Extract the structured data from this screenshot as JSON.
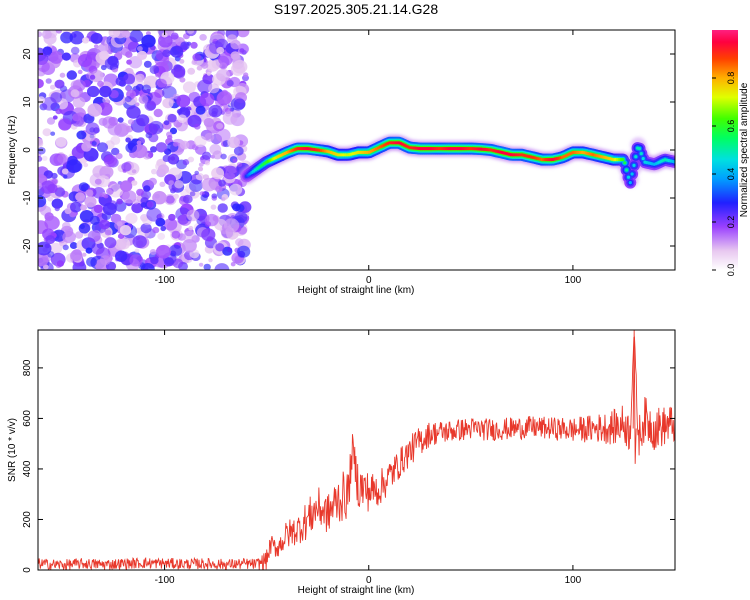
{
  "title": "S197.2025.305.21.14.G28",
  "chart_data": [
    {
      "type": "heatmap",
      "name": "spectrogram",
      "xlabel": "Height of straight line (km)",
      "ylabel": "Frequency (Hz)",
      "xlim": [
        -162,
        150
      ],
      "ylim": [
        -25,
        25
      ],
      "xticks": [
        -100,
        0,
        100
      ],
      "yticks": [
        -20,
        -10,
        0,
        10,
        20
      ],
      "noise_region_x": [
        -162,
        -60
      ],
      "signal_trace": {
        "x": [
          -60,
          -55,
          -50,
          -45,
          -40,
          -35,
          -30,
          -25,
          -20,
          -15,
          -10,
          -5,
          0,
          5,
          10,
          15,
          20,
          25,
          30,
          35,
          40,
          45,
          50,
          55,
          60,
          65,
          70,
          75,
          80,
          85,
          90,
          95,
          100,
          105,
          110,
          115,
          120,
          125,
          128,
          132,
          135,
          140,
          145,
          150
        ],
        "y": [
          -5.5,
          -4,
          -2.5,
          -1.5,
          -0.5,
          0.3,
          0.3,
          0,
          -0.3,
          -1,
          -1,
          -0.5,
          -0.5,
          0.5,
          1.5,
          1.5,
          0.5,
          0.3,
          0.3,
          0.3,
          0.3,
          0.3,
          0.3,
          0.2,
          0,
          -0.5,
          -1,
          -1,
          -1.5,
          -2,
          -2,
          -1.5,
          -0.5,
          -0.5,
          -1,
          -1.5,
          -2,
          -2,
          -7,
          1,
          -2.5,
          -3,
          -2,
          -2.5
        ],
        "amplitude": [
          0.3,
          0.5,
          0.6,
          0.75,
          0.8,
          0.9,
          0.95,
          0.9,
          0.8,
          0.75,
          0.7,
          0.75,
          0.8,
          0.85,
          0.9,
          0.95,
          0.9,
          0.95,
          0.95,
          0.9,
          0.95,
          0.95,
          0.9,
          0.95,
          0.9,
          0.95,
          0.95,
          0.9,
          0.9,
          0.85,
          0.95,
          0.85,
          0.85,
          0.8,
          0.85,
          0.8,
          0.75,
          0.6,
          0.4,
          0.5,
          0.45,
          0.4,
          0.5,
          0.4
        ]
      }
    },
    {
      "type": "colorbar",
      "label": "Normalized spectral amplitude",
      "range": [
        0,
        1
      ],
      "ticks": [
        "0.0",
        "0.2",
        "0.4",
        "0.6",
        "0.8"
      ]
    },
    {
      "type": "line",
      "name": "snr",
      "xlabel": "Height of straight line (km)",
      "ylabel": "SNR (10 * v/v)",
      "xlim": [
        -162,
        150
      ],
      "ylim": [
        0,
        950
      ],
      "xticks": [
        -100,
        0,
        100
      ],
      "yticks": [
        0,
        200,
        400,
        600,
        800
      ],
      "series": [
        {
          "name": "SNR",
          "color": "#e8382b",
          "x": [
            -162,
            -150,
            -140,
            -130,
            -120,
            -110,
            -100,
            -90,
            -80,
            -70,
            -60,
            -55,
            -50,
            -48,
            -45,
            -40,
            -35,
            -30,
            -25,
            -20,
            -15,
            -10,
            -8,
            -5,
            0,
            5,
            10,
            15,
            20,
            25,
            30,
            40,
            50,
            60,
            70,
            80,
            90,
            100,
            110,
            120,
            125,
            128,
            130,
            132,
            135,
            140,
            145,
            150
          ],
          "y": [
            25,
            20,
            25,
            22,
            25,
            28,
            26,
            24,
            25,
            22,
            25,
            22,
            40,
            100,
            85,
            140,
            160,
            200,
            250,
            220,
            280,
            300,
            480,
            330,
            310,
            320,
            370,
            420,
            470,
            510,
            540,
            550,
            560,
            555,
            560,
            565,
            560,
            555,
            560,
            565,
            580,
            540,
            950,
            520,
            600,
            560,
            570,
            580
          ],
          "noise_amplitude": [
            22,
            22,
            22,
            22,
            22,
            22,
            22,
            22,
            22,
            22,
            22,
            22,
            40,
            40,
            40,
            60,
            60,
            80,
            80,
            80,
            100,
            100,
            60,
            100,
            80,
            70,
            70,
            60,
            60,
            60,
            50,
            45,
            45,
            45,
            45,
            45,
            45,
            50,
            55,
            70,
            80,
            80,
            0,
            80,
            90,
            90,
            80,
            80
          ]
        }
      ]
    }
  ]
}
